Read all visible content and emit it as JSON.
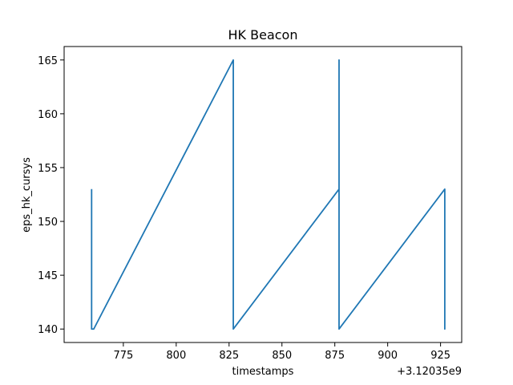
{
  "chart_data": {
    "type": "line",
    "title": "HK Beacon",
    "xlabel": "timestamps",
    "ylabel": "eps_hk_cursys",
    "x_offset_label": "+3.12035e9",
    "xlim": [
      747,
      935
    ],
    "ylim": [
      138.75,
      166.25
    ],
    "xticks": [
      775,
      800,
      825,
      850,
      875,
      900,
      925
    ],
    "yticks": [
      140,
      145,
      150,
      155,
      160,
      165
    ],
    "grid": false,
    "color": "#1f77b4",
    "series": [
      {
        "x": [
          3120350760,
          3120350760,
          3120350761,
          3120350827,
          3120350827,
          3120350827,
          3120350827,
          3120350827,
          3120350877,
          3120350877,
          3120350877,
          3120350877,
          3120350877,
          3120350877,
          3120350927,
          3120350927,
          3120350927,
          3120350927,
          3120350927
        ],
        "y": [
          153,
          140,
          140,
          165,
          140,
          153,
          140,
          140,
          153,
          165,
          140,
          165,
          140,
          140,
          153,
          140,
          153,
          140,
          140
        ]
      }
    ]
  }
}
